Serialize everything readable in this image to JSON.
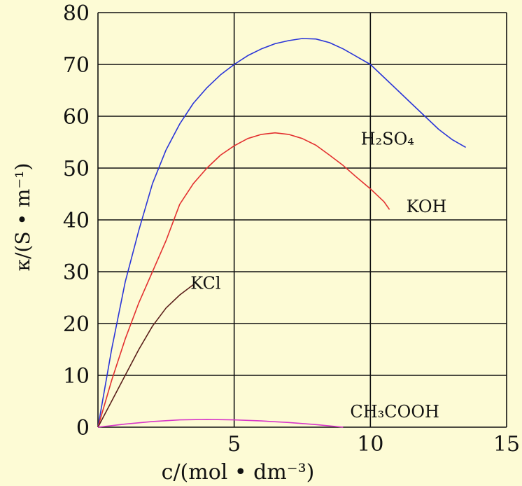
{
  "chart_data": {
    "type": "line",
    "xlabel": "c/(mol • dm⁻³)",
    "ylabel": "κ/(S • m⁻¹)",
    "xlim": [
      0,
      15
    ],
    "ylim": [
      0,
      80
    ],
    "x_ticks": [
      "5",
      "10",
      "15"
    ],
    "y_ticks": [
      "0",
      "10",
      "20",
      "30",
      "40",
      "50",
      "60",
      "70",
      "80"
    ],
    "grid": true,
    "legend": "inline labels at line ends",
    "series": [
      {
        "name": "H₂SO₄",
        "color": "#2a35d8",
        "x": [
          0,
          0.5,
          1,
          1.5,
          2,
          2.5,
          3,
          3.5,
          4,
          4.5,
          5,
          5.5,
          6,
          6.5,
          7,
          7.5,
          8,
          8.5,
          9,
          9.5,
          10,
          10.5,
          11,
          11.5,
          12,
          12.5,
          13,
          13.5
        ],
        "y": [
          0,
          15,
          28,
          38,
          47,
          53.5,
          58.5,
          62.5,
          65.5,
          68,
          70,
          71.7,
          73,
          74,
          74.6,
          75,
          74.9,
          74.2,
          73,
          71.5,
          70,
          67.5,
          65,
          62.5,
          60,
          57.5,
          55.5,
          54
        ]
      },
      {
        "name": "KOH",
        "color": "#e33030",
        "x": [
          0,
          0.5,
          1,
          1.5,
          2,
          2.5,
          3,
          3.5,
          4,
          4.5,
          5,
          5.5,
          6,
          6.5,
          7,
          7.5,
          8,
          8.5,
          9,
          9.5,
          10,
          10.5,
          10.7
        ],
        "y": [
          0,
          9,
          17,
          24,
          30,
          36,
          43,
          47,
          50,
          52.5,
          54.3,
          55.7,
          56.5,
          56.8,
          56.5,
          55.7,
          54.4,
          52.5,
          50.5,
          48.2,
          46,
          43.5,
          42
        ]
      },
      {
        "name": "KCl",
        "color": "#5a1f1a",
        "x": [
          0,
          0.5,
          1,
          1.5,
          2,
          2.5,
          3,
          3.5
        ],
        "y": [
          0,
          5,
          10,
          15,
          19.5,
          23,
          25.5,
          27.5
        ]
      },
      {
        "name": "CH₃COOH",
        "color": "#d835c8",
        "x": [
          0,
          1,
          2,
          3,
          4,
          5,
          6,
          7,
          8,
          9
        ],
        "y": [
          0,
          0.6,
          1.1,
          1.4,
          1.5,
          1.4,
          1.2,
          0.9,
          0.5,
          0
        ]
      }
    ]
  }
}
